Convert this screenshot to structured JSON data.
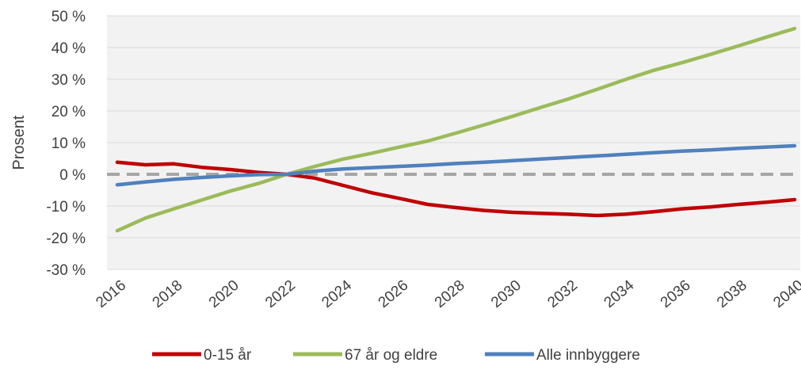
{
  "chart_data": {
    "type": "line",
    "title": "",
    "xlabel": "",
    "ylabel": "Prosent",
    "ylim": [
      -30,
      50
    ],
    "xlim": [
      2016,
      2040
    ],
    "y_ticks": [
      -30,
      -20,
      -10,
      0,
      10,
      20,
      30,
      40,
      50
    ],
    "y_tick_labels": [
      "-30 %",
      "-20 %",
      "-10 %",
      "0 %",
      "10 %",
      "20 %",
      "30 %",
      "40 %",
      "50 %"
    ],
    "x_ticks": [
      2016,
      2018,
      2020,
      2022,
      2024,
      2026,
      2028,
      2030,
      2032,
      2034,
      2036,
      2038,
      2040
    ],
    "x_tick_labels": [
      "2016",
      "2018",
      "2020",
      "2022",
      "2024",
      "2026",
      "2028",
      "2030",
      "2032",
      "2034",
      "2036",
      "2038",
      "2040"
    ],
    "grid": true,
    "reference_line": {
      "y": 0,
      "style": "dashed",
      "color": "#a6a6a6"
    },
    "legend_position": "bottom",
    "x": [
      2016,
      2017,
      2018,
      2019,
      2020,
      2021,
      2022,
      2023,
      2024,
      2025,
      2026,
      2027,
      2028,
      2029,
      2030,
      2031,
      2032,
      2033,
      2034,
      2035,
      2036,
      2037,
      2038,
      2039,
      2040
    ],
    "series": [
      {
        "name": "0-15 år",
        "color": "#c00000",
        "values": [
          3.8,
          3.0,
          3.3,
          2.2,
          1.5,
          0.6,
          0.0,
          -1.2,
          -3.5,
          -5.8,
          -7.6,
          -9.5,
          -10.5,
          -11.4,
          -12.0,
          -12.3,
          -12.6,
          -13.0,
          -12.6,
          -11.8,
          -10.9,
          -10.3,
          -9.5,
          -8.8,
          -8.0
        ]
      },
      {
        "name": "67 år og eldre",
        "color": "#9bbb59",
        "values": [
          -17.8,
          -13.8,
          -10.9,
          -8.1,
          -5.3,
          -2.9,
          0.0,
          2.5,
          4.8,
          6.6,
          8.6,
          10.5,
          13.0,
          15.6,
          18.3,
          21.1,
          23.8,
          26.8,
          29.9,
          32.8,
          35.2,
          37.8,
          40.5,
          43.3,
          46.0
        ]
      },
      {
        "name": "Alle innbyggere",
        "color": "#4f81bd",
        "values": [
          -3.3,
          -2.4,
          -1.6,
          -1.0,
          -0.5,
          -0.1,
          0.0,
          1.0,
          1.7,
          2.1,
          2.5,
          2.9,
          3.4,
          3.8,
          4.3,
          4.8,
          5.3,
          5.8,
          6.3,
          6.8,
          7.3,
          7.7,
          8.2,
          8.6,
          9.0
        ]
      }
    ]
  }
}
